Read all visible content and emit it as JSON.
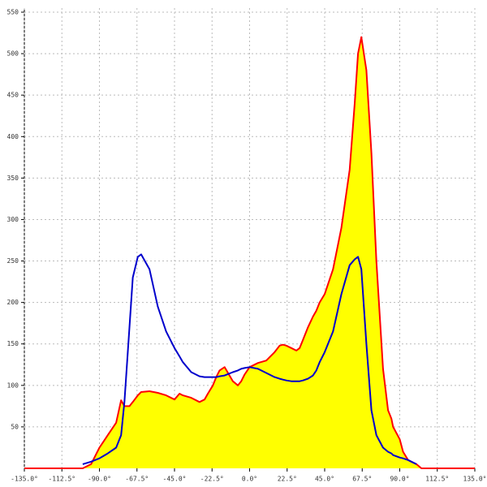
{
  "chart_data": {
    "type": "line",
    "x": [
      -135,
      -100,
      -95,
      -90,
      -85,
      -80,
      -77,
      -75,
      -72,
      -70,
      -67,
      -65,
      -60,
      -55,
      -50,
      -45,
      -42,
      -40,
      -35,
      -30,
      -27,
      -25,
      -22,
      -20,
      -18,
      -15,
      -10,
      -7,
      -5,
      -3,
      0,
      5,
      10,
      15,
      18,
      20,
      22,
      25,
      28,
      30,
      32,
      35,
      38,
      40,
      42,
      45,
      50,
      55,
      60,
      63,
      65,
      67,
      70,
      73,
      76,
      80,
      83,
      85,
      86,
      90,
      92,
      95,
      100,
      103,
      135
    ],
    "series": [
      {
        "color": "#ff0000",
        "fill": "#ffff00",
        "values": [
          0,
          0,
          5,
          25,
          40,
          55,
          82,
          75,
          75,
          80,
          88,
          92,
          93,
          91,
          88,
          83,
          90,
          88,
          85,
          80,
          83,
          90,
          100,
          110,
          118,
          122,
          105,
          100,
          105,
          113,
          122,
          127,
          130,
          140,
          148,
          149,
          148,
          145,
          142,
          145,
          155,
          170,
          183,
          190,
          200,
          210,
          240,
          290,
          360,
          440,
          500,
          520,
          480,
          380,
          250,
          120,
          70,
          60,
          50,
          35,
          20,
          10,
          5,
          0,
          0
        ]
      },
      {
        "color": "#0000cc",
        "values": [
          null,
          5,
          8,
          12,
          18,
          25,
          40,
          80,
          170,
          230,
          255,
          258,
          240,
          195,
          165,
          145,
          135,
          128,
          116,
          111,
          110,
          110,
          110,
          110,
          111,
          112,
          116,
          118,
          120,
          121,
          122,
          120,
          115,
          110,
          108,
          107,
          106,
          105,
          105,
          105,
          106,
          108,
          112,
          118,
          128,
          140,
          165,
          210,
          245,
          252,
          255,
          240,
          150,
          70,
          40,
          25,
          20,
          18,
          16,
          13,
          12,
          10,
          5,
          null,
          null
        ]
      }
    ],
    "xlim": [
      -135,
      135
    ],
    "xticks": [
      {
        "value": -135,
        "label": "-135.0°"
      },
      {
        "value": -112.5,
        "label": "-112.5°"
      },
      {
        "value": -90,
        "label": "-90.0°"
      },
      {
        "value": -67.5,
        "label": "-67.5°"
      },
      {
        "value": -45,
        "label": "-45.0°"
      },
      {
        "value": -22.5,
        "label": "-22.5°"
      },
      {
        "value": 0,
        "label": "0.0°"
      },
      {
        "value": 22.5,
        "label": "22.5°"
      },
      {
        "value": 45,
        "label": "45.0°"
      },
      {
        "value": 67.5,
        "label": "67.5°"
      },
      {
        "value": 90,
        "label": "90.0°"
      },
      {
        "value": 112.5,
        "label": "112.5°"
      },
      {
        "value": 135,
        "label": "135.0°"
      }
    ],
    "ylim": [
      0,
      550
    ],
    "yticks": [
      50,
      100,
      150,
      200,
      250,
      300,
      350,
      400,
      450,
      500,
      550
    ],
    "grid": true
  }
}
